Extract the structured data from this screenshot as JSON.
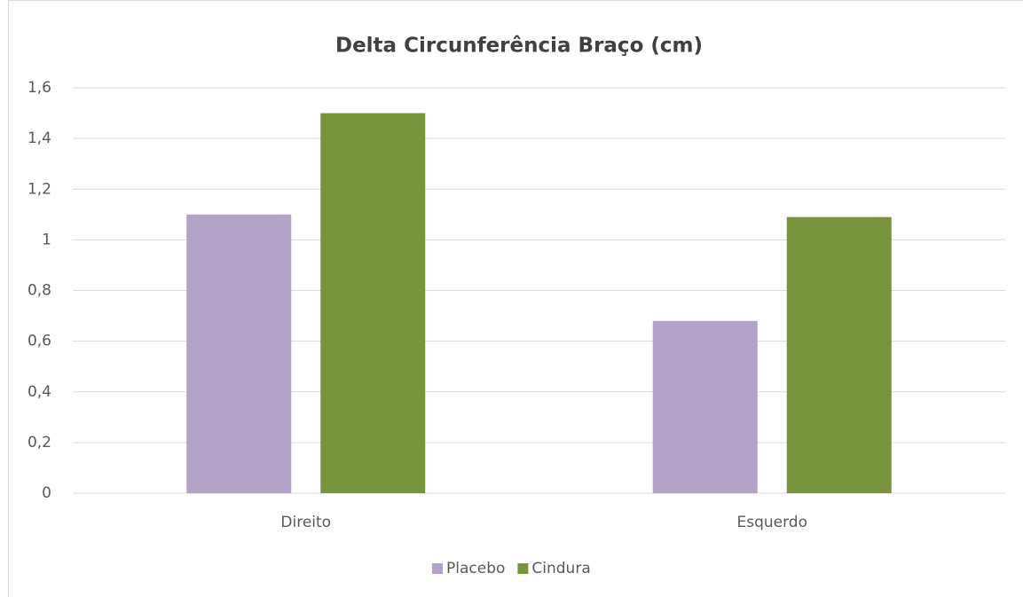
{
  "chart_data": {
    "type": "bar",
    "title": "Delta Circunferência Braço (cm)",
    "categories": [
      "Direito",
      "Esquerdo"
    ],
    "series": [
      {
        "name": "Placebo",
        "color": "#b3a2c7",
        "values": [
          1.1,
          0.68
        ]
      },
      {
        "name": "Cindura",
        "color": "#77933c",
        "values": [
          1.5,
          1.09
        ]
      }
    ],
    "ylim": [
      0,
      1.6
    ],
    "yticks": [
      0,
      {
        "value": 0.2,
        "label": "0,2"
      },
      {
        "value": 0.4,
        "label": "0,4"
      },
      {
        "value": 0.6,
        "label": "0,6"
      },
      {
        "value": 0.8,
        "label": "0,8"
      },
      1,
      {
        "value": 1.2,
        "label": "1,2"
      },
      {
        "value": 1.4,
        "label": "1,4"
      },
      {
        "value": 1.6,
        "label": "1,6"
      }
    ],
    "grid": true,
    "legend": "bottom"
  }
}
